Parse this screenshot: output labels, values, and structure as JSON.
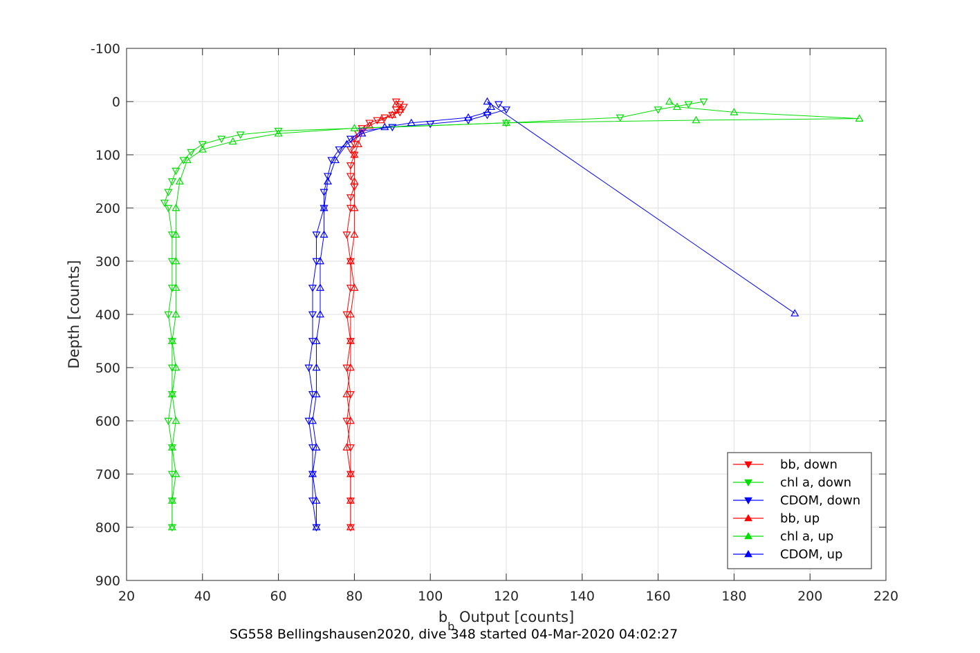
{
  "chart_data": {
    "type": "scatter",
    "title": "SG558 Bellingshausen2020, dive 348 started 04-Mar-2020 04:02:27",
    "xlabel_base": "b",
    "xlabel_sub": "b",
    "xlabel_rest": " Output [counts]",
    "ylabel": "Depth [counts]",
    "xlim": [
      20,
      220
    ],
    "ylim": [
      -100,
      900
    ],
    "y_reversed": true,
    "grid": true,
    "xticks": [
      "20",
      "40",
      "60",
      "80",
      "100",
      "120",
      "140",
      "160",
      "180",
      "200",
      "220"
    ],
    "yticks": [
      "-100",
      "0",
      "100",
      "200",
      "300",
      "400",
      "500",
      "600",
      "700",
      "800",
      "900"
    ],
    "legend_position": "bottom-right",
    "colors": {
      "bb": "#ff0000",
      "chl": "#00dd00",
      "cdom": "#0000ff"
    },
    "series": [
      {
        "name": "bb, down",
        "marker": "triangle-down",
        "color": "#ff0000",
        "points": [
          [
            91,
            0
          ],
          [
            92,
            5
          ],
          [
            93,
            10
          ],
          [
            91,
            15
          ],
          [
            92,
            20
          ],
          [
            90,
            25
          ],
          [
            88,
            30
          ],
          [
            86,
            35
          ],
          [
            84,
            40
          ],
          [
            82,
            50
          ],
          [
            81,
            60
          ],
          [
            80,
            70
          ],
          [
            80,
            80
          ],
          [
            79,
            90
          ],
          [
            80,
            100
          ],
          [
            79,
            120
          ],
          [
            79,
            140
          ],
          [
            80,
            160
          ],
          [
            79,
            180
          ],
          [
            79,
            200
          ],
          [
            78,
            250
          ],
          [
            79,
            300
          ],
          [
            79,
            350
          ],
          [
            78,
            400
          ],
          [
            79,
            450
          ],
          [
            78,
            500
          ],
          [
            79,
            550
          ],
          [
            78,
            600
          ],
          [
            79,
            650
          ],
          [
            79,
            700
          ],
          [
            79,
            750
          ],
          [
            79,
            800
          ]
        ]
      },
      {
        "name": "chl a, down",
        "marker": "triangle-down",
        "color": "#00dd00",
        "points": [
          [
            172,
            0
          ],
          [
            168,
            5
          ],
          [
            160,
            15
          ],
          [
            150,
            30
          ],
          [
            120,
            40
          ],
          [
            90,
            48
          ],
          [
            60,
            55
          ],
          [
            50,
            62
          ],
          [
            45,
            70
          ],
          [
            40,
            80
          ],
          [
            37,
            95
          ],
          [
            35,
            110
          ],
          [
            33,
            130
          ],
          [
            32,
            150
          ],
          [
            31,
            170
          ],
          [
            30,
            190
          ],
          [
            31,
            200
          ],
          [
            32,
            250
          ],
          [
            32,
            300
          ],
          [
            32,
            350
          ],
          [
            31,
            400
          ],
          [
            32,
            450
          ],
          [
            32,
            500
          ],
          [
            32,
            550
          ],
          [
            31,
            600
          ],
          [
            32,
            650
          ],
          [
            32,
            700
          ],
          [
            32,
            750
          ],
          [
            32,
            800
          ]
        ]
      },
      {
        "name": "CDOM, down",
        "marker": "triangle-down",
        "color": "#0000ff",
        "points": [
          [
            118,
            5
          ],
          [
            120,
            15
          ],
          [
            115,
            25
          ],
          [
            110,
            35
          ],
          [
            100,
            42
          ],
          [
            90,
            48
          ],
          [
            82,
            55
          ],
          [
            79,
            70
          ],
          [
            76,
            90
          ],
          [
            74,
            110
          ],
          [
            73,
            140
          ],
          [
            72,
            170
          ],
          [
            72,
            200
          ],
          [
            70,
            250
          ],
          [
            70,
            300
          ],
          [
            69,
            350
          ],
          [
            69,
            400
          ],
          [
            69,
            450
          ],
          [
            68,
            500
          ],
          [
            69,
            550
          ],
          [
            68,
            600
          ],
          [
            69,
            650
          ],
          [
            69,
            700
          ],
          [
            69,
            750
          ],
          [
            70,
            800
          ]
        ]
      },
      {
        "name": "bb, up",
        "marker": "triangle-up",
        "color": "#ff0000",
        "points": [
          [
            79,
            800
          ],
          [
            79,
            750
          ],
          [
            79,
            700
          ],
          [
            78,
            650
          ],
          [
            79,
            600
          ],
          [
            78,
            550
          ],
          [
            79,
            500
          ],
          [
            79,
            450
          ],
          [
            79,
            400
          ],
          [
            80,
            350
          ],
          [
            79,
            300
          ],
          [
            80,
            250
          ],
          [
            80,
            200
          ],
          [
            80,
            150
          ],
          [
            80,
            100
          ],
          [
            81,
            80
          ],
          [
            82,
            60
          ],
          [
            84,
            45
          ],
          [
            87,
            35
          ],
          [
            90,
            25
          ],
          [
            92,
            15
          ],
          [
            91,
            5
          ]
        ]
      },
      {
        "name": "chl a, up",
        "marker": "triangle-up",
        "color": "#00dd00",
        "points": [
          [
            32,
            800
          ],
          [
            32,
            750
          ],
          [
            33,
            700
          ],
          [
            32,
            650
          ],
          [
            33,
            600
          ],
          [
            32,
            550
          ],
          [
            33,
            500
          ],
          [
            32,
            450
          ],
          [
            33,
            400
          ],
          [
            33,
            350
          ],
          [
            33,
            300
          ],
          [
            33,
            250
          ],
          [
            33,
            200
          ],
          [
            34,
            150
          ],
          [
            36,
            110
          ],
          [
            40,
            90
          ],
          [
            48,
            75
          ],
          [
            60,
            60
          ],
          [
            80,
            50
          ],
          [
            120,
            40
          ],
          [
            170,
            35
          ],
          [
            213,
            32
          ],
          [
            180,
            20
          ],
          [
            165,
            10
          ],
          [
            163,
            0
          ]
        ]
      },
      {
        "name": "CDOM, up",
        "marker": "triangle-up",
        "color": "#0000ff",
        "points": [
          [
            70,
            800
          ],
          [
            70,
            750
          ],
          [
            69,
            700
          ],
          [
            70,
            650
          ],
          [
            69,
            600
          ],
          [
            70,
            550
          ],
          [
            70,
            500
          ],
          [
            70,
            450
          ],
          [
            71,
            400
          ],
          [
            71,
            350
          ],
          [
            71,
            300
          ],
          [
            72,
            250
          ],
          [
            72,
            200
          ],
          [
            73,
            150
          ],
          [
            75,
            110
          ],
          [
            78,
            80
          ],
          [
            82,
            60
          ],
          [
            88,
            48
          ],
          [
            95,
            40
          ],
          [
            110,
            30
          ],
          [
            115,
            20
          ],
          [
            116,
            10
          ],
          [
            115,
            0
          ],
          [
            196,
            398
          ]
        ]
      }
    ]
  }
}
